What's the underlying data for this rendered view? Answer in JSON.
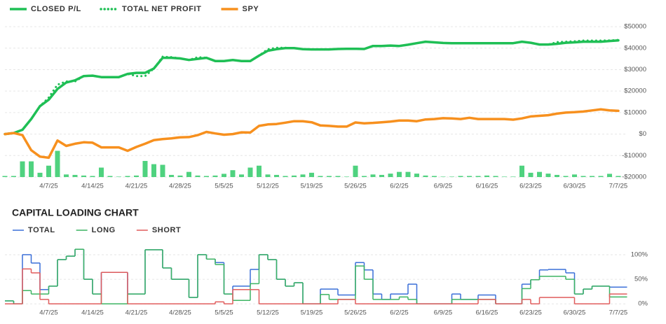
{
  "chart_data": [
    {
      "type": "line",
      "x": [
        "2025-03-31",
        "2025-04-01",
        "2025-04-02",
        "2025-04-03",
        "2025-04-04",
        "2025-04-07",
        "2025-04-08",
        "2025-04-09",
        "2025-04-10",
        "2025-04-11",
        "2025-04-14",
        "2025-04-15",
        "2025-04-16",
        "2025-04-17",
        "2025-04-18",
        "2025-04-21",
        "2025-04-22",
        "2025-04-23",
        "2025-04-24",
        "2025-04-25",
        "2025-04-28",
        "2025-04-29",
        "2025-04-30",
        "2025-05-01",
        "2025-05-02",
        "2025-05-05",
        "2025-05-06",
        "2025-05-07",
        "2025-05-08",
        "2025-05-09",
        "2025-05-12",
        "2025-05-13",
        "2025-05-14",
        "2025-05-15",
        "2025-05-16",
        "2025-05-19",
        "2025-05-20",
        "2025-05-21",
        "2025-05-22",
        "2025-05-23",
        "2025-05-26",
        "2025-05-27",
        "2025-05-28",
        "2025-05-29",
        "2025-05-30",
        "2025-06-02",
        "2025-06-03",
        "2025-06-04",
        "2025-06-05",
        "2025-06-06",
        "2025-06-09",
        "2025-06-10",
        "2025-06-11",
        "2025-06-12",
        "2025-06-13",
        "2025-06-16",
        "2025-06-17",
        "2025-06-18",
        "2025-06-19",
        "2025-06-20",
        "2025-06-23",
        "2025-06-24",
        "2025-06-25",
        "2025-06-26",
        "2025-06-27",
        "2025-06-30",
        "2025-07-01",
        "2025-07-02",
        "2025-07-03",
        "2025-07-04",
        "2025-07-07"
      ],
      "xlim": [
        "2025-03-31",
        "2025-07-07"
      ],
      "xticks": [
        {
          "value": "2025-04-07",
          "label": "4/7/25"
        },
        {
          "value": "2025-04-14",
          "label": "4/14/25"
        },
        {
          "value": "2025-04-21",
          "label": "4/21/25"
        },
        {
          "value": "2025-04-28",
          "label": "4/28/25"
        },
        {
          "value": "2025-05-05",
          "label": "5/5/25"
        },
        {
          "value": "2025-05-12",
          "label": "5/12/25"
        },
        {
          "value": "2025-05-19",
          "label": "5/19/25"
        },
        {
          "value": "2025-05-26",
          "label": "5/26/25"
        },
        {
          "value": "2025-06-02",
          "label": "6/2/25"
        },
        {
          "value": "2025-06-09",
          "label": "6/9/25"
        },
        {
          "value": "2025-06-16",
          "label": "6/16/25"
        },
        {
          "value": "2025-06-23",
          "label": "6/23/25"
        },
        {
          "value": "2025-06-30",
          "label": "6/30/25"
        },
        {
          "value": "2025-07-07",
          "label": "7/7/25"
        }
      ],
      "ylim": [
        -21300,
        51000
      ],
      "yticks": [
        {
          "value": 50000,
          "label": "$50000"
        },
        {
          "value": 40000,
          "label": "$40000"
        },
        {
          "value": 30000,
          "label": "$30000"
        },
        {
          "value": 20000,
          "label": "$20000"
        },
        {
          "value": 10000,
          "label": "$10000"
        },
        {
          "value": 0,
          "label": "$0"
        },
        {
          "value": -10000,
          "label": "-$10000"
        },
        {
          "value": -20000,
          "label": "-$20000"
        }
      ],
      "y_axis_side": "right",
      "grid": true,
      "legend": "top-left",
      "series": [
        {
          "name": "CLOSED P/L",
          "color": "#1fbf55",
          "style": "solid",
          "values": [
            0,
            500,
            2000,
            7000,
            13000,
            16000,
            21000,
            24000,
            25000,
            27000,
            27200,
            26500,
            26500,
            26500,
            28000,
            28500,
            28500,
            30500,
            35500,
            35500,
            35200,
            34500,
            35000,
            35500,
            34000,
            34000,
            34500,
            34000,
            34000,
            36500,
            38800,
            39500,
            40000,
            40000,
            39500,
            39400,
            39400,
            39400,
            39600,
            39700,
            39700,
            39600,
            41000,
            41000,
            41200,
            41000,
            41600,
            42300,
            43000,
            42700,
            42400,
            42300,
            42300,
            42300,
            42300,
            42300,
            42300,
            42300,
            42300,
            43000,
            42500,
            41700,
            41700,
            42000,
            42500,
            42700,
            43000,
            43000,
            43000,
            43300,
            43600
          ]
        },
        {
          "name": "TOTAL NET PROFIT",
          "color": "#1fbf55",
          "style": "dotted",
          "values": [
            0,
            500,
            2000,
            7000,
            13000,
            17000,
            23000,
            24500,
            24500,
            27000,
            27200,
            26500,
            26500,
            26500,
            28000,
            27000,
            27000,
            30500,
            36000,
            35800,
            35200,
            34500,
            35800,
            35500,
            34000,
            34000,
            34500,
            34000,
            34000,
            36500,
            39500,
            40200,
            40200,
            40000,
            39500,
            39400,
            39400,
            39400,
            39600,
            39700,
            39700,
            39600,
            41000,
            41000,
            41200,
            41000,
            41600,
            42300,
            43000,
            42700,
            42400,
            42300,
            42300,
            42300,
            42300,
            42300,
            42300,
            42300,
            42300,
            43000,
            42500,
            41700,
            41700,
            42800,
            43000,
            43200,
            43500,
            43500,
            43500,
            43600,
            43800
          ]
        },
        {
          "name": "SPY",
          "color": "#f7901e",
          "style": "solid",
          "values": [
            0,
            500,
            -500,
            -7500,
            -10500,
            -11000,
            -3000,
            -5500,
            -4500,
            -3800,
            -4000,
            -6200,
            -6200,
            -6200,
            -7800,
            -6000,
            -4500,
            -2800,
            -2300,
            -2000,
            -1500,
            -1400,
            -500,
            1000,
            300,
            -300,
            0,
            800,
            700,
            3800,
            4500,
            4700,
            5300,
            6000,
            6000,
            5500,
            4000,
            3800,
            3500,
            3500,
            5400,
            5000,
            5200,
            5500,
            5800,
            6300,
            6300,
            6000,
            6800,
            7000,
            7400,
            7300,
            7000,
            7600,
            7000,
            7000,
            7000,
            7000,
            6700,
            7300,
            8200,
            8500,
            8800,
            9500,
            10000,
            10200,
            10500,
            11000,
            11500,
            11000,
            10800
          ]
        },
        {
          "kind": "bar",
          "color": "#4fd27f",
          "values": [
            -19500,
            -19500,
            -12700,
            -12700,
            -18000,
            -14700,
            -7800,
            -18800,
            -19000,
            -19300,
            -19500,
            -15600,
            -19500,
            -19800,
            -19500,
            -19300,
            -12500,
            -14000,
            -14300,
            -19000,
            -19300,
            -17600,
            -19300,
            -19500,
            -19300,
            -18500,
            -16800,
            -18800,
            -15600,
            -14700,
            -18800,
            -19000,
            -19500,
            -19300,
            -18800,
            -18000,
            -19500,
            -19500,
            -19500,
            -19800,
            -14700,
            -19500,
            -18800,
            -19000,
            -18400,
            -17600,
            -17600,
            -18400,
            -19300,
            -19500,
            -19800,
            -19800,
            -19500,
            -19500,
            -19500,
            -19300,
            -19500,
            -19800,
            -19800,
            -14700,
            -18000,
            -17600,
            -18400,
            -19000,
            -19500,
            -18800,
            -19500,
            -19500,
            -19500,
            -18500,
            -19500
          ]
        }
      ]
    },
    {
      "type": "step",
      "title": "CAPITAL LOADING CHART",
      "x": [
        "2025-03-31",
        "2025-04-01",
        "2025-04-02",
        "2025-04-03",
        "2025-04-04",
        "2025-04-07",
        "2025-04-08",
        "2025-04-09",
        "2025-04-10",
        "2025-04-11",
        "2025-04-14",
        "2025-04-15",
        "2025-04-16",
        "2025-04-17",
        "2025-04-18",
        "2025-04-21",
        "2025-04-22",
        "2025-04-23",
        "2025-04-24",
        "2025-04-25",
        "2025-04-28",
        "2025-04-29",
        "2025-04-30",
        "2025-05-01",
        "2025-05-02",
        "2025-05-05",
        "2025-05-06",
        "2025-05-07",
        "2025-05-08",
        "2025-05-09",
        "2025-05-12",
        "2025-05-13",
        "2025-05-14",
        "2025-05-15",
        "2025-05-16",
        "2025-05-19",
        "2025-05-20",
        "2025-05-21",
        "2025-05-22",
        "2025-05-23",
        "2025-05-26",
        "2025-05-27",
        "2025-05-28",
        "2025-05-29",
        "2025-05-30",
        "2025-06-02",
        "2025-06-03",
        "2025-06-04",
        "2025-06-05",
        "2025-06-06",
        "2025-06-09",
        "2025-06-10",
        "2025-06-11",
        "2025-06-12",
        "2025-06-13",
        "2025-06-16",
        "2025-06-17",
        "2025-06-18",
        "2025-06-19",
        "2025-06-20",
        "2025-06-23",
        "2025-06-24",
        "2025-06-25",
        "2025-06-26",
        "2025-06-27",
        "2025-06-30",
        "2025-07-01",
        "2025-07-02",
        "2025-07-03",
        "2025-07-04",
        "2025-07-07"
      ],
      "xlim": [
        "2025-03-31",
        "2025-07-07"
      ],
      "xticks": [
        {
          "value": "2025-04-07",
          "label": "4/7/25"
        },
        {
          "value": "2025-04-14",
          "label": "4/14/25"
        },
        {
          "value": "2025-04-21",
          "label": "4/21/25"
        },
        {
          "value": "2025-04-28",
          "label": "4/28/25"
        },
        {
          "value": "2025-05-05",
          "label": "5/5/25"
        },
        {
          "value": "2025-05-12",
          "label": "5/12/25"
        },
        {
          "value": "2025-05-19",
          "label": "5/19/25"
        },
        {
          "value": "2025-05-26",
          "label": "5/26/25"
        },
        {
          "value": "2025-06-02",
          "label": "6/2/25"
        },
        {
          "value": "2025-06-09",
          "label": "6/9/25"
        },
        {
          "value": "2025-06-16",
          "label": "6/16/25"
        },
        {
          "value": "2025-06-23",
          "label": "6/23/25"
        },
        {
          "value": "2025-06-30",
          "label": "6/30/25"
        },
        {
          "value": "2025-07-07",
          "label": "7/7/25"
        }
      ],
      "ylim": [
        -4,
        117
      ],
      "yticks": [
        {
          "value": 100,
          "label": "100%"
        },
        {
          "value": 50,
          "label": "50%"
        },
        {
          "value": 0,
          "label": "0%"
        }
      ],
      "y_axis_side": "right",
      "grid": true,
      "legend": "top-left",
      "series": [
        {
          "name": "TOTAL",
          "color": "#3a6fd8",
          "values": [
            6,
            0,
            100,
            83,
            29,
            36,
            90,
            97,
            111,
            50,
            20,
            64,
            64,
            64,
            20,
            20,
            110,
            110,
            73,
            50,
            50,
            13,
            100,
            91,
            84,
            20,
            36,
            36,
            70,
            100,
            90,
            50,
            36,
            43,
            0,
            0,
            30,
            30,
            18,
            18,
            84,
            69,
            20,
            9,
            20,
            20,
            40,
            0,
            0,
            0,
            0,
            20,
            9,
            9,
            18,
            18,
            0,
            0,
            0,
            40,
            49,
            69,
            70,
            70,
            63,
            20,
            30,
            36,
            36,
            34,
            34
          ]
        },
        {
          "name": "LONG",
          "color": "#3cb462",
          "values": [
            6,
            0,
            27,
            20,
            20,
            36,
            90,
            97,
            111,
            50,
            20,
            0,
            0,
            0,
            20,
            20,
            110,
            110,
            73,
            50,
            50,
            13,
            100,
            91,
            80,
            20,
            7,
            7,
            41,
            100,
            90,
            50,
            36,
            43,
            0,
            0,
            19,
            9,
            9,
            9,
            77,
            50,
            9,
            9,
            9,
            14,
            9,
            0,
            0,
            0,
            0,
            9,
            9,
            9,
            9,
            9,
            0,
            0,
            0,
            31,
            49,
            56,
            56,
            56,
            50,
            20,
            30,
            36,
            36,
            14,
            14
          ]
        },
        {
          "name": "SHORT",
          "color": "#e05c5c",
          "values": [
            0,
            0,
            71,
            63,
            9,
            0,
            0,
            0,
            0,
            0,
            0,
            64,
            64,
            64,
            0,
            0,
            0,
            0,
            0,
            0,
            0,
            0,
            0,
            0,
            4,
            0,
            29,
            29,
            29,
            0,
            0,
            0,
            0,
            0,
            0,
            0,
            0,
            0,
            9,
            9,
            0,
            0,
            0,
            0,
            0,
            0,
            0,
            0,
            0,
            0,
            0,
            0,
            0,
            0,
            9,
            9,
            0,
            0,
            0,
            9,
            0,
            13,
            13,
            13,
            13,
            0,
            0,
            0,
            0,
            20,
            20
          ]
        }
      ]
    }
  ]
}
